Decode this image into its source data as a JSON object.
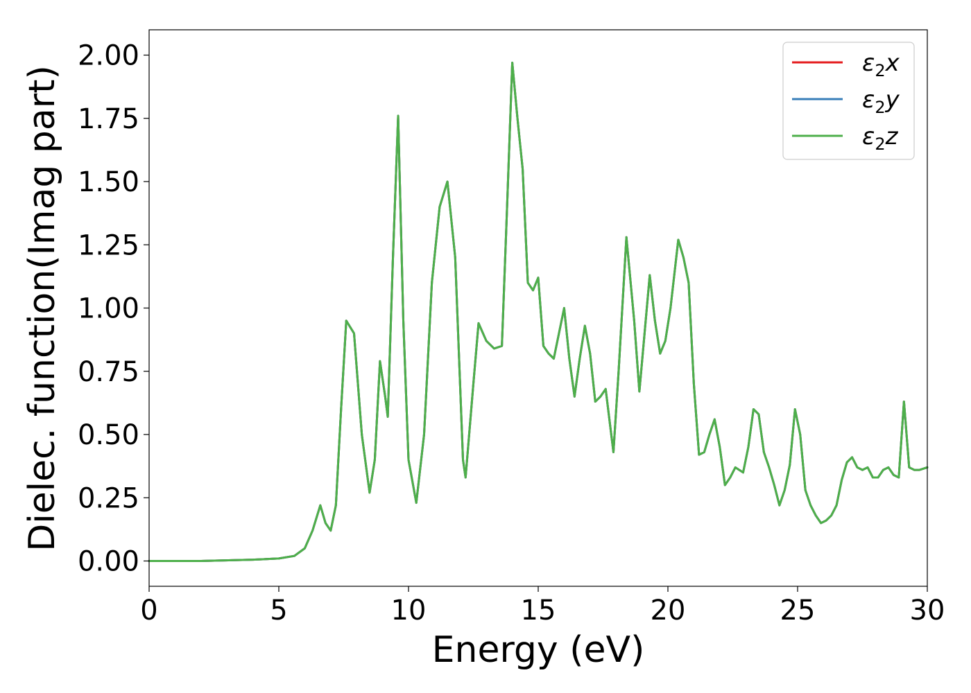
{
  "chart_data": {
    "type": "line",
    "title": "",
    "xlabel": "Energy (eV)",
    "ylabel": "Dielec. function(Imag part)",
    "xlim": [
      0,
      30
    ],
    "ylim": [
      -0.1,
      2.1
    ],
    "xticks": [
      0,
      5,
      10,
      15,
      20,
      25,
      30
    ],
    "xtick_labels": [
      "0",
      "5",
      "10",
      "15",
      "20",
      "25",
      "30"
    ],
    "yticks": [
      0.0,
      0.25,
      0.5,
      0.75,
      1.0,
      1.25,
      1.5,
      1.75,
      2.0
    ],
    "ytick_labels": [
      "0.00",
      "0.25",
      "0.50",
      "0.75",
      "1.00",
      "1.25",
      "1.50",
      "1.75",
      "2.00"
    ],
    "grid": false,
    "legend_position": "top-right",
    "series": [
      {
        "name": "ε₂x",
        "legend_base": "ε",
        "legend_sub": "2",
        "legend_suffix": "x",
        "color": "#e41a1c",
        "x": [
          0,
          2,
          4,
          5,
          5.6,
          6.0,
          6.3,
          6.6,
          6.8,
          7.0,
          7.2,
          7.4,
          7.6,
          7.9,
          8.2,
          8.5,
          8.7,
          8.9,
          9.1,
          9.2,
          9.4,
          9.6,
          9.8,
          10.0,
          10.3,
          10.6,
          10.9,
          11.2,
          11.5,
          11.8,
          12.1,
          12.2,
          12.5,
          12.7,
          13.0,
          13.3,
          13.6,
          13.8,
          14.0,
          14.2,
          14.4,
          14.6,
          14.8,
          15.0,
          15.2,
          15.4,
          15.6,
          15.8,
          16.0,
          16.2,
          16.4,
          16.6,
          16.8,
          17.0,
          17.2,
          17.4,
          17.6,
          17.9,
          18.1,
          18.4,
          18.7,
          18.9,
          19.1,
          19.3,
          19.5,
          19.7,
          19.9,
          20.1,
          20.4,
          20.6,
          20.8,
          21.0,
          21.2,
          21.4,
          21.6,
          21.8,
          22.0,
          22.2,
          22.4,
          22.6,
          22.9,
          23.1,
          23.3,
          23.5,
          23.7,
          23.9,
          24.1,
          24.3,
          24.5,
          24.7,
          24.9,
          25.1,
          25.3,
          25.5,
          25.7,
          25.9,
          26.1,
          26.3,
          26.5,
          26.7,
          26.9,
          27.1,
          27.3,
          27.5,
          27.7,
          27.9,
          28.1,
          28.3,
          28.5,
          28.7,
          28.9,
          29.1,
          29.3,
          29.5,
          29.7,
          30.0
        ],
        "y": [
          0.0,
          0.0,
          0.005,
          0.01,
          0.02,
          0.05,
          0.12,
          0.22,
          0.15,
          0.12,
          0.22,
          0.6,
          0.95,
          0.9,
          0.5,
          0.27,
          0.4,
          0.79,
          0.65,
          0.57,
          1.2,
          1.76,
          0.95,
          0.4,
          0.23,
          0.5,
          1.1,
          1.4,
          1.5,
          1.2,
          0.4,
          0.33,
          0.7,
          0.94,
          0.87,
          0.84,
          0.85,
          1.4,
          1.97,
          1.75,
          1.55,
          1.1,
          1.07,
          1.12,
          0.85,
          0.82,
          0.8,
          0.9,
          1.0,
          0.8,
          0.65,
          0.8,
          0.93,
          0.82,
          0.63,
          0.65,
          0.68,
          0.43,
          0.75,
          1.28,
          0.95,
          0.67,
          0.9,
          1.13,
          0.95,
          0.82,
          0.87,
          1.0,
          1.27,
          1.2,
          1.1,
          0.7,
          0.42,
          0.43,
          0.5,
          0.56,
          0.45,
          0.3,
          0.33,
          0.37,
          0.35,
          0.45,
          0.6,
          0.58,
          0.43,
          0.37,
          0.3,
          0.22,
          0.28,
          0.38,
          0.6,
          0.5,
          0.28,
          0.22,
          0.18,
          0.15,
          0.16,
          0.18,
          0.22,
          0.32,
          0.39,
          0.41,
          0.37,
          0.36,
          0.37,
          0.33,
          0.33,
          0.36,
          0.37,
          0.34,
          0.33,
          0.63,
          0.37,
          0.36,
          0.36,
          0.37
        ]
      },
      {
        "name": "ε₂y",
        "legend_base": "ε",
        "legend_sub": "2",
        "legend_suffix": "y",
        "color": "#377eb8",
        "x": [
          0,
          2,
          4,
          5,
          5.6,
          6.0,
          6.3,
          6.6,
          6.8,
          7.0,
          7.2,
          7.4,
          7.6,
          7.9,
          8.2,
          8.5,
          8.7,
          8.9,
          9.1,
          9.2,
          9.4,
          9.6,
          9.8,
          10.0,
          10.3,
          10.6,
          10.9,
          11.2,
          11.5,
          11.8,
          12.1,
          12.2,
          12.5,
          12.7,
          13.0,
          13.3,
          13.6,
          13.8,
          14.0,
          14.2,
          14.4,
          14.6,
          14.8,
          15.0,
          15.2,
          15.4,
          15.6,
          15.8,
          16.0,
          16.2,
          16.4,
          16.6,
          16.8,
          17.0,
          17.2,
          17.4,
          17.6,
          17.9,
          18.1,
          18.4,
          18.7,
          18.9,
          19.1,
          19.3,
          19.5,
          19.7,
          19.9,
          20.1,
          20.4,
          20.6,
          20.8,
          21.0,
          21.2,
          21.4,
          21.6,
          21.8,
          22.0,
          22.2,
          22.4,
          22.6,
          22.9,
          23.1,
          23.3,
          23.5,
          23.7,
          23.9,
          24.1,
          24.3,
          24.5,
          24.7,
          24.9,
          25.1,
          25.3,
          25.5,
          25.7,
          25.9,
          26.1,
          26.3,
          26.5,
          26.7,
          26.9,
          27.1,
          27.3,
          27.5,
          27.7,
          27.9,
          28.1,
          28.3,
          28.5,
          28.7,
          28.9,
          29.1,
          29.3,
          29.5,
          29.7,
          30.0
        ],
        "y": [
          0.0,
          0.0,
          0.005,
          0.01,
          0.02,
          0.05,
          0.12,
          0.22,
          0.15,
          0.12,
          0.22,
          0.6,
          0.95,
          0.9,
          0.5,
          0.27,
          0.4,
          0.79,
          0.65,
          0.57,
          1.2,
          1.76,
          0.95,
          0.4,
          0.23,
          0.5,
          1.1,
          1.4,
          1.5,
          1.2,
          0.4,
          0.33,
          0.7,
          0.94,
          0.87,
          0.84,
          0.85,
          1.4,
          1.97,
          1.75,
          1.55,
          1.1,
          1.07,
          1.12,
          0.85,
          0.82,
          0.8,
          0.9,
          1.0,
          0.8,
          0.65,
          0.8,
          0.93,
          0.82,
          0.63,
          0.65,
          0.68,
          0.43,
          0.75,
          1.28,
          0.95,
          0.67,
          0.9,
          1.13,
          0.95,
          0.82,
          0.87,
          1.0,
          1.27,
          1.2,
          1.1,
          0.7,
          0.42,
          0.43,
          0.5,
          0.56,
          0.45,
          0.3,
          0.33,
          0.37,
          0.35,
          0.45,
          0.6,
          0.58,
          0.43,
          0.37,
          0.3,
          0.22,
          0.28,
          0.38,
          0.6,
          0.5,
          0.28,
          0.22,
          0.18,
          0.15,
          0.16,
          0.18,
          0.22,
          0.32,
          0.39,
          0.41,
          0.37,
          0.36,
          0.37,
          0.33,
          0.33,
          0.36,
          0.37,
          0.34,
          0.33,
          0.63,
          0.37,
          0.36,
          0.36,
          0.37
        ]
      },
      {
        "name": "ε₂z",
        "legend_base": "ε",
        "legend_sub": "2",
        "legend_suffix": "z",
        "color": "#4daf4a",
        "x": [
          0,
          2,
          4,
          5,
          5.6,
          6.0,
          6.3,
          6.6,
          6.8,
          7.0,
          7.2,
          7.4,
          7.6,
          7.9,
          8.2,
          8.5,
          8.7,
          8.9,
          9.1,
          9.2,
          9.4,
          9.6,
          9.8,
          10.0,
          10.3,
          10.6,
          10.9,
          11.2,
          11.5,
          11.8,
          12.1,
          12.2,
          12.5,
          12.7,
          13.0,
          13.3,
          13.6,
          13.8,
          14.0,
          14.2,
          14.4,
          14.6,
          14.8,
          15.0,
          15.2,
          15.4,
          15.6,
          15.8,
          16.0,
          16.2,
          16.4,
          16.6,
          16.8,
          17.0,
          17.2,
          17.4,
          17.6,
          17.9,
          18.1,
          18.4,
          18.7,
          18.9,
          19.1,
          19.3,
          19.5,
          19.7,
          19.9,
          20.1,
          20.4,
          20.6,
          20.8,
          21.0,
          21.2,
          21.4,
          21.6,
          21.8,
          22.0,
          22.2,
          22.4,
          22.6,
          22.9,
          23.1,
          23.3,
          23.5,
          23.7,
          23.9,
          24.1,
          24.3,
          24.5,
          24.7,
          24.9,
          25.1,
          25.3,
          25.5,
          25.7,
          25.9,
          26.1,
          26.3,
          26.5,
          26.7,
          26.9,
          27.1,
          27.3,
          27.5,
          27.7,
          27.9,
          28.1,
          28.3,
          28.5,
          28.7,
          28.9,
          29.1,
          29.3,
          29.5,
          29.7,
          30.0
        ],
        "y": [
          0.0,
          0.0,
          0.005,
          0.01,
          0.02,
          0.05,
          0.12,
          0.22,
          0.15,
          0.12,
          0.22,
          0.6,
          0.95,
          0.9,
          0.5,
          0.27,
          0.4,
          0.79,
          0.65,
          0.57,
          1.2,
          1.76,
          0.95,
          0.4,
          0.23,
          0.5,
          1.1,
          1.4,
          1.5,
          1.2,
          0.4,
          0.33,
          0.7,
          0.94,
          0.87,
          0.84,
          0.85,
          1.4,
          1.97,
          1.75,
          1.55,
          1.1,
          1.07,
          1.12,
          0.85,
          0.82,
          0.8,
          0.9,
          1.0,
          0.8,
          0.65,
          0.8,
          0.93,
          0.82,
          0.63,
          0.65,
          0.68,
          0.43,
          0.75,
          1.28,
          0.95,
          0.67,
          0.9,
          1.13,
          0.95,
          0.82,
          0.87,
          1.0,
          1.27,
          1.2,
          1.1,
          0.7,
          0.42,
          0.43,
          0.5,
          0.56,
          0.45,
          0.3,
          0.33,
          0.37,
          0.35,
          0.45,
          0.6,
          0.58,
          0.43,
          0.37,
          0.3,
          0.22,
          0.28,
          0.38,
          0.6,
          0.5,
          0.28,
          0.22,
          0.18,
          0.15,
          0.16,
          0.18,
          0.22,
          0.32,
          0.39,
          0.41,
          0.37,
          0.36,
          0.37,
          0.33,
          0.33,
          0.36,
          0.37,
          0.34,
          0.33,
          0.63,
          0.37,
          0.36,
          0.36,
          0.37
        ]
      }
    ]
  }
}
